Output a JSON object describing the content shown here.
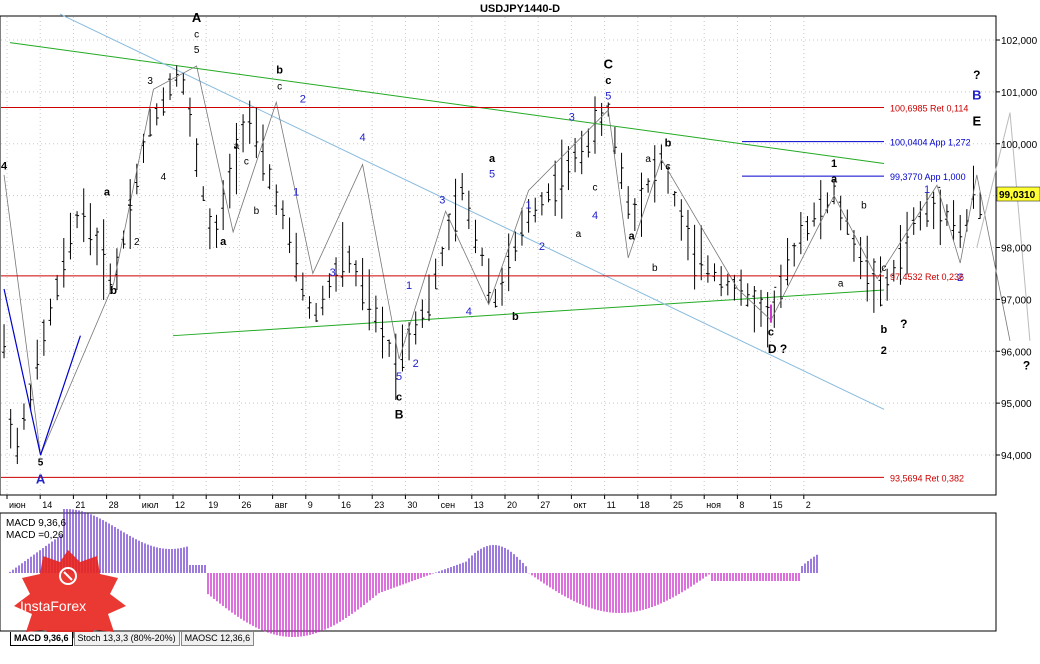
{
  "title": "USDJPY1440-D",
  "price_axis": [
    "102,000",
    "101,000",
    "100,000",
    "99,000",
    "98,000",
    "97,000",
    "96,000",
    "95,000",
    "94,000"
  ],
  "current_price": "99,0310",
  "time_axis": [
    "июн",
    "14",
    "21",
    "28",
    "июл",
    "12",
    "19",
    "26",
    "авг",
    "9",
    "16",
    "23",
    "30",
    "сен",
    "13",
    "20",
    "27",
    "окт",
    "11",
    "18",
    "25",
    "ноя",
    "8",
    "15",
    "2"
  ],
  "levels": [
    {
      "label": "100,6985 Ret 0,114",
      "price": 100.6985,
      "color": "#cc0000"
    },
    {
      "label": "100,0404 App 1,272",
      "price": 100.0404,
      "color": "#0000cc"
    },
    {
      "label": "99,3770 App 1,000",
      "price": 99.377,
      "color": "#0000cc"
    },
    {
      "label": "97,4532 Ret 0,236",
      "price": 97.4532,
      "color": "#cc0000"
    },
    {
      "label": "93,5694 Ret 0,382",
      "price": 93.5694,
      "color": "#cc0000"
    }
  ],
  "indicator": {
    "name_label": "MACD 9,36,6",
    "value_label": "MACD =0,26"
  },
  "tabs": [
    "MACD 9,36,6",
    "Stoch 13,3,3 (80%-20%)",
    "MAOSC 12,36,6"
  ],
  "logo_text": "InstaForex",
  "wave_labels": [
    {
      "t": "A",
      "c": "#000",
      "b": true,
      "s": 13,
      "day": 5.5,
      "p": 102.35
    },
    {
      "t": "c",
      "c": "#000",
      "b": false,
      "s": 10,
      "day": 5.5,
      "p": 102.05
    },
    {
      "t": "5",
      "c": "#000",
      "b": false,
      "s": 10,
      "day": 5.5,
      "p": 101.75
    },
    {
      "t": "3",
      "c": "#000",
      "b": false,
      "s": 10,
      "day": 4.1,
      "p": 101.15
    },
    {
      "t": "4",
      "c": "#000",
      "b": true,
      "s": 11,
      "day": -0.3,
      "p": 99.5
    },
    {
      "t": "a",
      "c": "#000",
      "b": true,
      "s": 11,
      "day": 2.8,
      "p": 99.0
    },
    {
      "t": "1",
      "c": "#000",
      "b": false,
      "s": 10,
      "day": 3.5,
      "p": 98.8
    },
    {
      "t": "2",
      "c": "#000",
      "b": false,
      "s": 10,
      "day": 3.7,
      "p": 98.05
    },
    {
      "t": "4",
      "c": "#000",
      "b": false,
      "s": 10,
      "day": 4.5,
      "p": 99.3
    },
    {
      "t": "b",
      "c": "#000",
      "b": true,
      "s": 11,
      "day": 3.0,
      "p": 97.1
    },
    {
      "t": "5",
      "c": "#000",
      "b": false,
      "s": 10,
      "day": -1.5,
      "p": 94.75
    },
    {
      "t": "3",
      "c": "#000",
      "b": true,
      "s": 11,
      "day": -1.5,
      "p": 94.55
    },
    {
      "t": "5",
      "c": "#000",
      "b": true,
      "s": 10,
      "day": 0.8,
      "p": 93.8
    },
    {
      "t": "A",
      "c": "#2222cc",
      "b": true,
      "s": 13,
      "day": 0.8,
      "p": 93.45
    },
    {
      "t": "b",
      "c": "#000",
      "b": true,
      "s": 11,
      "day": 8.0,
      "p": 101.35
    },
    {
      "t": "c",
      "c": "#000",
      "b": false,
      "s": 10,
      "day": 8.0,
      "p": 101.05
    },
    {
      "t": "2",
      "c": "#2222cc",
      "b": false,
      "s": 11,
      "day": 8.7,
      "p": 100.8
    },
    {
      "t": "a",
      "c": "#000",
      "b": false,
      "s": 10,
      "day": 6.7,
      "p": 99.9
    },
    {
      "t": "c",
      "c": "#000",
      "b": false,
      "s": 10,
      "day": 7.0,
      "p": 99.6
    },
    {
      "t": "b",
      "c": "#000",
      "b": false,
      "s": 10,
      "day": 7.3,
      "p": 98.65
    },
    {
      "t": "a",
      "c": "#000",
      "b": true,
      "s": 11,
      "day": 6.3,
      "p": 98.05
    },
    {
      "t": "1",
      "c": "#2222cc",
      "b": false,
      "s": 11,
      "day": 8.5,
      "p": 99.0
    },
    {
      "t": "4",
      "c": "#2222cc",
      "b": false,
      "s": 11,
      "day": 10.5,
      "p": 100.05
    },
    {
      "t": "3",
      "c": "#2222cc",
      "b": false,
      "s": 11,
      "day": 9.6,
      "p": 97.45
    },
    {
      "t": "1",
      "c": "#2222cc",
      "b": false,
      "s": 11,
      "day": 11.9,
      "p": 97.2
    },
    {
      "t": "5",
      "c": "#2222cc",
      "b": false,
      "s": 11,
      "day": 11.6,
      "p": 95.45
    },
    {
      "t": "c",
      "c": "#000",
      "b": true,
      "s": 11,
      "day": 11.6,
      "p": 95.05
    },
    {
      "t": "B",
      "c": "#000",
      "b": true,
      "s": 12,
      "day": 11.6,
      "p": 94.7
    },
    {
      "t": "2",
      "c": "#2222cc",
      "b": false,
      "s": 11,
      "day": 12.1,
      "p": 95.7
    },
    {
      "t": "3",
      "c": "#2222cc",
      "b": false,
      "s": 11,
      "day": 12.9,
      "p": 98.85
    },
    {
      "t": "4",
      "c": "#2222cc",
      "b": false,
      "s": 11,
      "day": 13.7,
      "p": 96.7
    },
    {
      "t": "a",
      "c": "#000",
      "b": true,
      "s": 11,
      "day": 14.4,
      "p": 99.65
    },
    {
      "t": "5",
      "c": "#2222cc",
      "b": false,
      "s": 11,
      "day": 14.4,
      "p": 99.35
    },
    {
      "t": "1",
      "c": "#2222cc",
      "b": false,
      "s": 11,
      "day": 15.5,
      "p": 98.75
    },
    {
      "t": "2",
      "c": "#2222cc",
      "b": false,
      "s": 11,
      "day": 15.9,
      "p": 97.95
    },
    {
      "t": "b",
      "c": "#000",
      "b": true,
      "s": 11,
      "day": 15.1,
      "p": 96.6
    },
    {
      "t": "a",
      "c": "#000",
      "b": false,
      "s": 10,
      "day": 17.0,
      "p": 98.2
    },
    {
      "t": "3",
      "c": "#2222cc",
      "b": false,
      "s": 11,
      "day": 16.8,
      "p": 100.45
    },
    {
      "t": "c",
      "c": "#000",
      "b": false,
      "s": 10,
      "day": 17.5,
      "p": 99.1
    },
    {
      "t": "4",
      "c": "#2222cc",
      "b": false,
      "s": 11,
      "day": 17.5,
      "p": 98.55
    },
    {
      "t": "C",
      "c": "#000",
      "b": true,
      "s": 13,
      "day": 17.9,
      "p": 101.45
    },
    {
      "t": "c",
      "c": "#000",
      "b": true,
      "s": 11,
      "day": 17.9,
      "p": 101.15
    },
    {
      "t": "5",
      "c": "#2222cc",
      "b": false,
      "s": 11,
      "day": 17.9,
      "p": 100.85
    },
    {
      "t": "b",
      "c": "#000",
      "b": true,
      "s": 11,
      "day": 19.7,
      "p": 99.95
    },
    {
      "t": "a",
      "c": "#000",
      "b": false,
      "s": 10,
      "day": 19.1,
      "p": 99.65
    },
    {
      "t": "c",
      "c": "#000",
      "b": false,
      "s": 10,
      "day": 19.7,
      "p": 99.5
    },
    {
      "t": "a",
      "c": "#000",
      "b": true,
      "s": 11,
      "day": 18.6,
      "p": 98.15
    },
    {
      "t": "b",
      "c": "#000",
      "b": false,
      "s": 10,
      "day": 19.3,
      "p": 97.55
    },
    {
      "t": "c",
      "c": "#000",
      "b": true,
      "s": 11,
      "day": 22.8,
      "p": 96.3
    },
    {
      "t": "D ?",
      "c": "#000",
      "b": true,
      "s": 12,
      "day": 23.0,
      "p": 95.97
    },
    {
      "t": "1",
      "c": "#000",
      "b": true,
      "s": 11,
      "day": 24.7,
      "p": 99.55
    },
    {
      "t": "a",
      "c": "#000",
      "b": true,
      "s": 11,
      "day": 24.7,
      "p": 99.25
    },
    {
      "t": "b",
      "c": "#000",
      "b": false,
      "s": 10,
      "day": 25.6,
      "p": 98.75
    },
    {
      "t": "a",
      "c": "#000",
      "b": false,
      "s": 10,
      "day": 24.9,
      "p": 97.25
    },
    {
      "t": "c",
      "c": "#000",
      "b": false,
      "s": 10,
      "day": 26.2,
      "p": 97.55
    },
    {
      "t": "b",
      "c": "#000",
      "b": true,
      "s": 11,
      "day": 26.2,
      "p": 96.35
    },
    {
      "t": "?",
      "c": "#000",
      "b": true,
      "s": 12,
      "day": 26.8,
      "p": 96.45
    },
    {
      "t": "2",
      "c": "#000",
      "b": true,
      "s": 11,
      "day": 26.2,
      "p": 95.95
    },
    {
      "t": "1",
      "c": "#2222cc",
      "b": false,
      "s": 11,
      "day": 27.5,
      "p": 99.05
    },
    {
      "t": "2",
      "c": "#2222cc",
      "b": false,
      "s": 11,
      "day": 28.5,
      "p": 97.35
    },
    {
      "t": "?",
      "c": "#000",
      "b": true,
      "s": 12,
      "day": 29.0,
      "p": 101.25
    },
    {
      "t": "B",
      "c": "#2222cc",
      "b": true,
      "s": 13,
      "day": 29.0,
      "p": 100.85
    },
    {
      "t": "E",
      "c": "#000",
      "b": true,
      "s": 13,
      "day": 29.0,
      "p": 100.35
    },
    {
      "t": "?",
      "c": "#000",
      "b": true,
      "s": 12,
      "day": 30.5,
      "p": 95.65
    }
  ]
}
